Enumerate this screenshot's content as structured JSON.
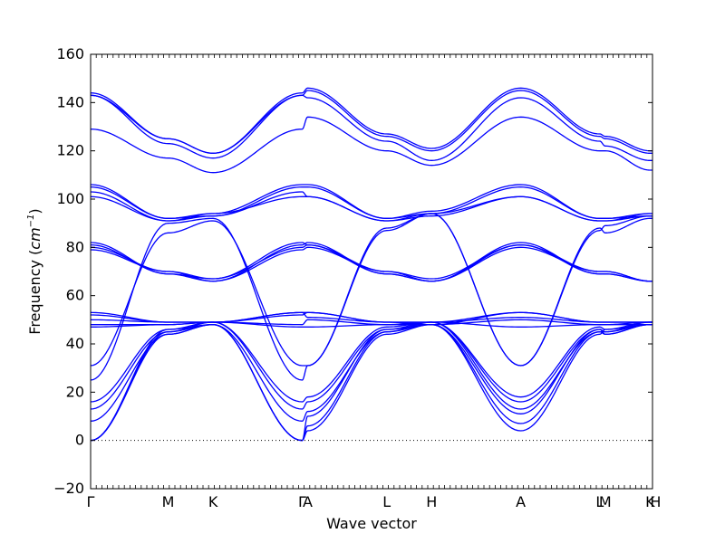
{
  "chart_data": {
    "type": "line",
    "title": "",
    "xlabel": "Wave vector",
    "ylabel_main": "Frequency (",
    "ylabel_unit": "cm",
    "ylabel_exp": "−1",
    "ylabel_close": ")",
    "ylim": [
      -20,
      160
    ],
    "xlim": [
      0,
      7.25
    ],
    "yticks": [
      "−20",
      "0",
      "20",
      "40",
      "60",
      "80",
      "100",
      "120",
      "140",
      "160"
    ],
    "ytick_values": [
      -20,
      0,
      20,
      40,
      60,
      80,
      100,
      120,
      140,
      160
    ],
    "xticks": [
      {
        "label": "Γ",
        "x": 0
      },
      {
        "label": "M",
        "x": 1.0
      },
      {
        "label": "K",
        "x": 1.58
      },
      {
        "label": "Γ",
        "x": 2.73
      },
      {
        "label": "A",
        "x": 2.8
      },
      {
        "label": "L",
        "x": 3.82
      },
      {
        "label": "H",
        "x": 4.4
      },
      {
        "label": "A",
        "x": 5.55
      },
      {
        "label": "L",
        "x": 6.57
      },
      {
        "label": "M",
        "x": 6.64
      },
      {
        "label": "K",
        "x": 7.22
      },
      {
        "label": "H",
        "x": 7.29
      }
    ],
    "line_color": "#0000ff",
    "zero_line": true,
    "segment_breaks": [
      0,
      1.0,
      1.58,
      2.73,
      2.8,
      3.82,
      4.4,
      5.55,
      6.57,
      6.64,
      7.22,
      7.29
    ],
    "series": [
      {
        "values_at_breaks": [
          0,
          46,
          48,
          0,
          4,
          44,
          48,
          4,
          44,
          46,
          48,
          48
        ]
      },
      {
        "values_at_breaks": [
          0,
          45,
          48,
          0,
          6,
          45,
          48,
          7,
          45,
          45,
          48,
          48
        ]
      },
      {
        "values_at_breaks": [
          0,
          44,
          48,
          0,
          10,
          46,
          48,
          11,
          46,
          44,
          48,
          48
        ]
      },
      {
        "values_at_breaks": [
          8,
          44,
          48,
          8,
          12,
          45,
          49,
          13,
          45,
          44,
          48,
          48
        ]
      },
      {
        "values_at_breaks": [
          13,
          45,
          49,
          13,
          16,
          46,
          49,
          16,
          46,
          45,
          49,
          49
        ]
      },
      {
        "values_at_breaks": [
          16,
          46,
          49,
          16,
          18,
          47,
          49,
          18,
          47,
          46,
          49,
          49
        ]
      },
      {
        "values_at_breaks": [
          25,
          90,
          92,
          25,
          31,
          87,
          94,
          31,
          87,
          89,
          93,
          93
        ]
      },
      {
        "values_at_breaks": [
          31,
          86,
          91,
          31,
          31,
          88,
          94,
          31,
          88,
          86,
          92,
          92
        ]
      },
      {
        "values_at_breaks": [
          47,
          48,
          49,
          47,
          47,
          48,
          49,
          47,
          48,
          48,
          48,
          48
        ]
      },
      {
        "values_at_breaks": [
          48,
          48,
          49,
          48,
          50,
          48,
          48,
          50,
          48,
          48,
          49,
          49
        ]
      },
      {
        "values_at_breaks": [
          50,
          49,
          49,
          52,
          53,
          49,
          48,
          53,
          49,
          49,
          49,
          49
        ]
      },
      {
        "values_at_breaks": [
          52,
          49,
          49,
          53,
          53,
          49,
          49,
          53,
          49,
          49,
          49,
          49
        ]
      },
      {
        "values_at_breaks": [
          53,
          49,
          49,
          53,
          51,
          49,
          49,
          51,
          49,
          49,
          49,
          49
        ]
      },
      {
        "values_at_breaks": [
          79,
          70,
          66,
          79,
          80,
          70,
          66,
          80,
          70,
          70,
          66,
          66
        ]
      },
      {
        "values_at_breaks": [
          80,
          70,
          67,
          80,
          81,
          70,
          67,
          81,
          70,
          70,
          66,
          66
        ]
      },
      {
        "values_at_breaks": [
          81,
          69,
          66,
          81,
          82,
          69,
          66,
          82,
          69,
          69,
          66,
          66
        ]
      },
      {
        "values_at_breaks": [
          82,
          69,
          67,
          82,
          81,
          69,
          66,
          81,
          69,
          69,
          66,
          66
        ]
      },
      {
        "values_at_breaks": [
          101,
          91,
          94,
          101,
          101,
          91,
          93,
          101,
          91,
          91,
          94,
          94
        ]
      },
      {
        "values_at_breaks": [
          103,
          91,
          93,
          103,
          101,
          91,
          94,
          101,
          91,
          91,
          93,
          93
        ]
      },
      {
        "values_at_breaks": [
          105,
          92,
          93,
          105,
          105,
          92,
          94,
          105,
          92,
          92,
          93,
          93
        ]
      },
      {
        "values_at_breaks": [
          106,
          92,
          94,
          106,
          106,
          92,
          95,
          106,
          92,
          92,
          94,
          94
        ]
      },
      {
        "values_at_breaks": [
          129,
          117,
          111,
          129,
          134,
          120,
          114,
          134,
          120,
          120,
          112,
          112
        ]
      },
      {
        "values_at_breaks": [
          143,
          123,
          117,
          143,
          142,
          124,
          116,
          142,
          124,
          122,
          116,
          116
        ]
      },
      {
        "values_at_breaks": [
          143,
          125,
          119,
          143,
          145,
          126,
          120,
          145,
          126,
          125,
          119,
          119
        ]
      },
      {
        "values_at_breaks": [
          144,
          125,
          119,
          144,
          146,
          127,
          121,
          146,
          127,
          126,
          120,
          120
        ]
      }
    ]
  }
}
